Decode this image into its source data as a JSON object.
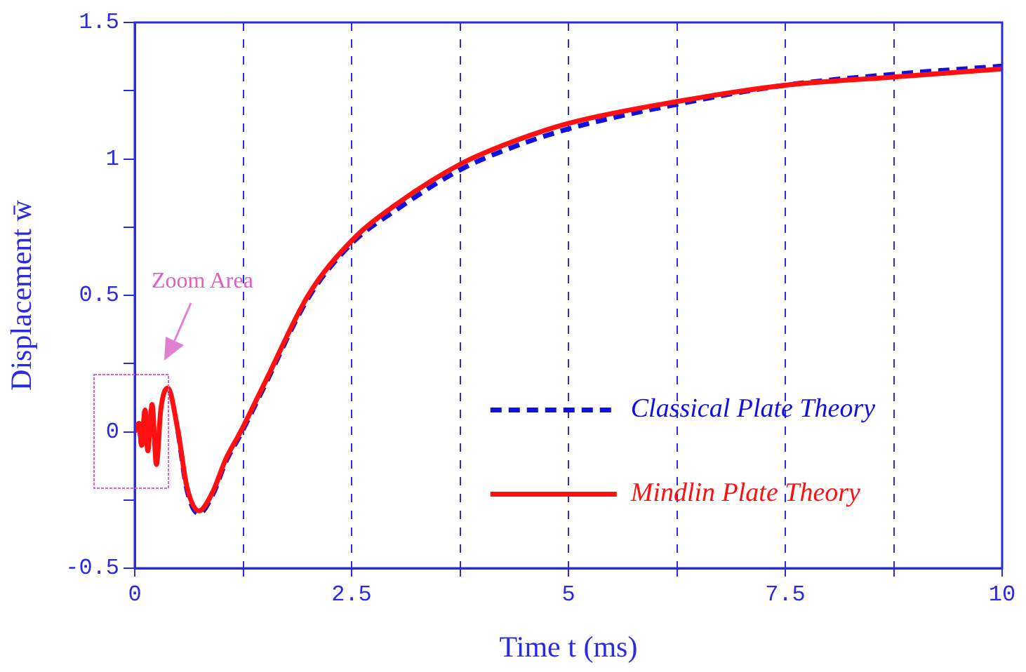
{
  "chart_data": {
    "type": "line",
    "xlabel": "Time t (ms)",
    "ylabel": "Displacement w̄",
    "xlim": [
      0,
      10
    ],
    "ylim": [
      -0.5,
      1.5
    ],
    "xticks": [
      0,
      {
        "value": 1.25,
        "label": null
      },
      2.5,
      {
        "value": 3.75,
        "label": null
      },
      5,
      {
        "value": 6.25,
        "label": null
      },
      7.5,
      {
        "value": 8.75,
        "label": null
      },
      10
    ],
    "yticks": [
      -0.5,
      {
        "value": -0.25,
        "label": null
      },
      0,
      {
        "value": 0.25,
        "label": null
      },
      0.5,
      {
        "value": 0.75,
        "label": null
      },
      1,
      {
        "value": 1.25,
        "label": null
      },
      1.5
    ],
    "grid": "x",
    "legend": "bottom right",
    "marker": "none",
    "annotations": [
      "Zoom Area"
    ],
    "series": [
      {
        "name": "Classical Plate Theory",
        "color": "#1010e0",
        "line_style": "dashed",
        "x": [
          0,
          0.05,
          0.08,
          0.12,
          0.15,
          0.2,
          0.25,
          0.3,
          0.38,
          0.5,
          0.6,
          0.74,
          0.9,
          1.05,
          1.22,
          1.5,
          2,
          2.5,
          3,
          3.75,
          4.25,
          5,
          6.25,
          7.5,
          8.75,
          10
        ],
        "values": [
          0,
          0.03,
          -0.05,
          0.08,
          -0.07,
          null,
          null,
          null,
          null,
          0,
          -0.21,
          -0.3,
          -0.23,
          -0.11,
          -0.01,
          0.17,
          0.49,
          0.69,
          0.81,
          0.96,
          1.03,
          1.11,
          1.2,
          1.27,
          1.31,
          1.34
        ]
      },
      {
        "name": "Mindlin Plate Theory",
        "color": "#ff1010",
        "line_style": "solid",
        "x": [
          0,
          0.05,
          0.08,
          0.12,
          0.15,
          0.2,
          0.25,
          0.3,
          0.38,
          0.5,
          0.6,
          0.74,
          0.9,
          1.05,
          1.22,
          1.5,
          2,
          2.5,
          3,
          3.75,
          4.25,
          5,
          6.25,
          7.5,
          8.75,
          10
        ],
        "values": [
          0,
          0.03,
          -0.05,
          0.08,
          -0.07,
          0.1,
          -0.12,
          0.08,
          0.16,
          0,
          -0.2,
          -0.29,
          -0.22,
          -0.1,
          0,
          0.18,
          0.5,
          0.7,
          0.83,
          0.98,
          1.05,
          1.13,
          1.21,
          1.27,
          1.3,
          1.33
        ]
      }
    ]
  }
}
